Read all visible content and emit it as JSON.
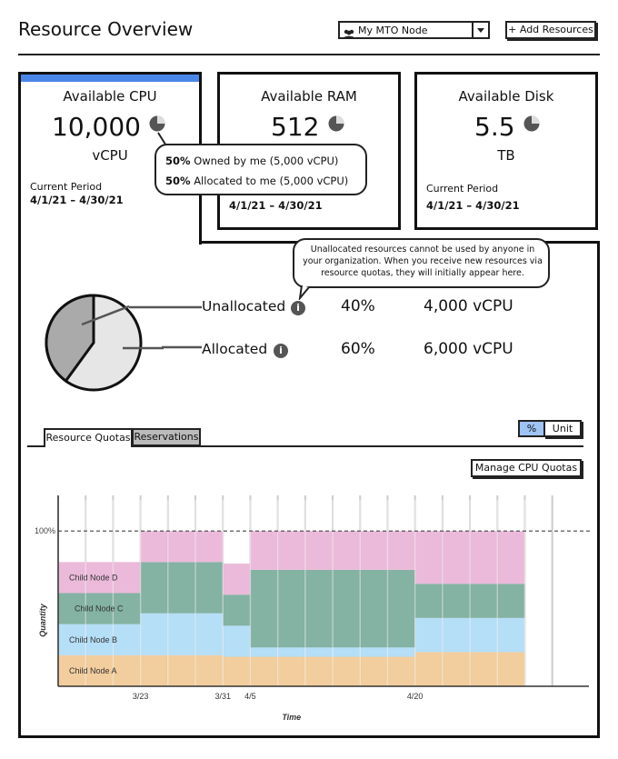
{
  "header": {
    "title": "Resource Overview",
    "node_select": {
      "value": "My MTO Node"
    },
    "add_button": "+ Add Resources"
  },
  "cards": {
    "cpu": {
      "title": "Available CPU",
      "value": "10,000",
      "unit": "vCPU",
      "period_label": "Current Period",
      "period": "4/1/21 – 4/30/21"
    },
    "ram": {
      "title": "Available RAM",
      "value": "512",
      "period": "4/1/21 – 4/30/21"
    },
    "disk": {
      "title": "Available Disk",
      "value": "5.5",
      "unit": "TB",
      "period_label": "Current Period",
      "period": "4/1/21 – 4/30/21"
    }
  },
  "cpu_tooltip": {
    "owned_pct": "50%",
    "owned_text": "Owned by me (5,000 vCPU)",
    "allocated_pct": "50%",
    "allocated_text": "Allocated to me (5,000 vCPU)"
  },
  "unallocated_tooltip": "Unallocated resources cannot be used by anyone in your organization. When you receive new resources via resource quotas, they will initially appear here.",
  "breakdown": {
    "unallocated": {
      "label": "Unallocated",
      "pct": "40%",
      "amount": "4,000 vCPU",
      "fraction": 0.4
    },
    "allocated": {
      "label": "Allocated",
      "pct": "60%",
      "amount": "6,000 vCPU",
      "fraction": 0.6
    }
  },
  "tabs": {
    "quotas": "Resource Quotas",
    "reservations": "Reservations"
  },
  "toggle": {
    "percent": "%",
    "unit": "Unit"
  },
  "manage_button": "Manage CPU Quotas",
  "colors": {
    "accent": "#4a86e8",
    "node_a": "#f0c48c",
    "node_b": "#a8d8f6",
    "node_c": "#6fa493",
    "node_d": "#e8aed4",
    "pie_unallocated": "#aaaaaa",
    "pie_allocated": "#e6e6e6"
  },
  "chart_data": {
    "type": "area",
    "title": "",
    "xlabel": "Time",
    "ylabel": "Quantity",
    "ylim": [
      0,
      120
    ],
    "ref_line": {
      "value": 100,
      "label": "100%"
    },
    "x_tick_labels": [
      {
        "x": 3,
        "label": "3/23"
      },
      {
        "x": 6,
        "label": "3/31"
      },
      {
        "x": 7,
        "label": "4/5"
      },
      {
        "x": 13,
        "label": "4/20"
      }
    ],
    "periods": [
      {
        "start": 0,
        "end": 3,
        "A": 20,
        "B": 20,
        "C": 20,
        "D": 20
      },
      {
        "start": 3,
        "end": 6,
        "A": 20,
        "B": 27,
        "C": 33,
        "D": 20
      },
      {
        "start": 6,
        "end": 7,
        "A": 19,
        "B": 20,
        "C": 20,
        "D": 20
      },
      {
        "start": 7,
        "end": 13,
        "A": 19,
        "B": 6,
        "C": 50,
        "D": 25
      },
      {
        "start": 13,
        "end": 17,
        "A": 22,
        "B": 22,
        "C": 22,
        "D": 34
      }
    ],
    "series_labels": {
      "A": "Child Node A",
      "B": "Child Node B",
      "C": "Child Node C",
      "D": "Child Node D"
    },
    "x_range": [
      0,
      17
    ]
  }
}
